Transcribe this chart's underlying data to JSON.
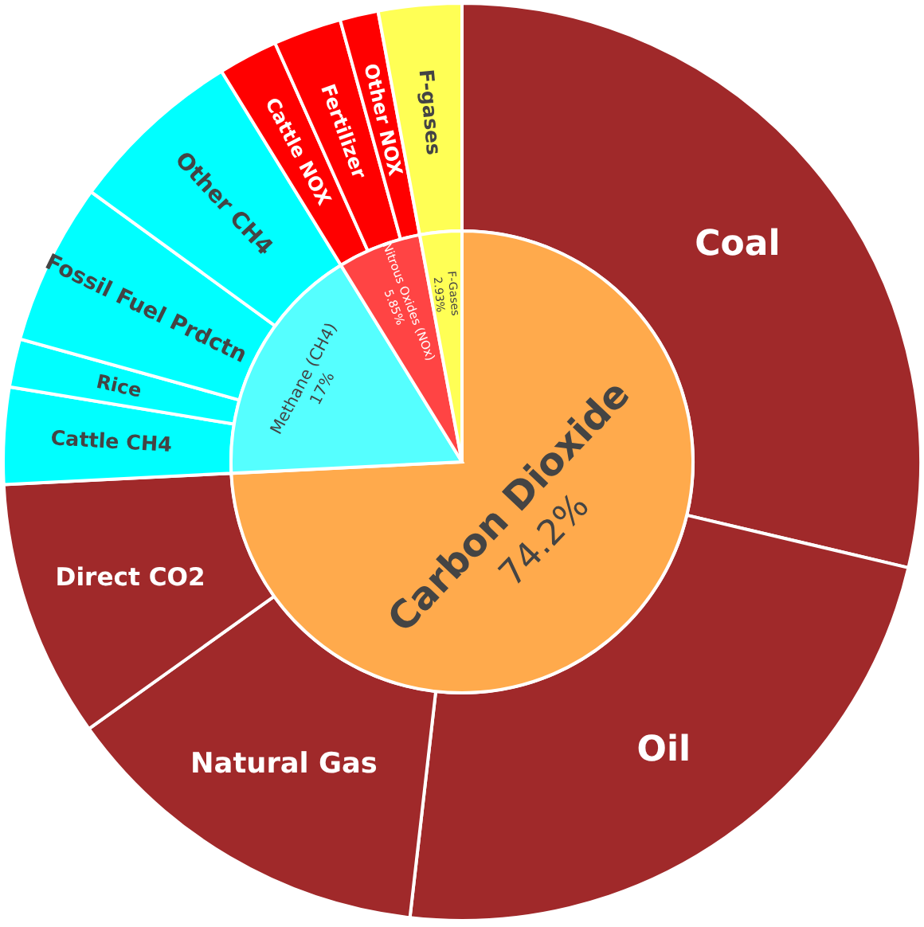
{
  "chart_data": [
    {
      "type": "pie",
      "categories": [
        "Carbon Dioxide",
        "Methane (CH4)",
        "Nitrous Oxides (NOx)",
        "F-Gases"
      ],
      "values": [
        74.2,
        17,
        5.85,
        2.93
      ],
      "value_labels": [
        "74.2%",
        "17%",
        "5.85%",
        "2.93%"
      ],
      "colors": [
        "#ffaa4c",
        "#55ffff",
        "#ff4444",
        "#ffff55"
      ]
    },
    {
      "type": "donut",
      "categories": [
        "Coal",
        "Oil",
        "Natural Gas",
        "Direct CO2",
        "Cattle CH4",
        "Rice",
        "Fossil Fuel Prdctn",
        "Other CH4",
        "Cattle NOX",
        "Fertilizer",
        "Other NOX",
        "F-gases"
      ],
      "values": [
        28.7,
        23.1,
        13.3,
        9.1,
        3.4,
        1.7,
        5.7,
        6.2,
        2.1,
        2.4,
        1.35,
        2.93
      ],
      "colors": [
        "#a0292a",
        "#a0292a",
        "#a0292a",
        "#a0292a",
        "#00ffff",
        "#00ffff",
        "#00ffff",
        "#00ffff",
        "#ff0000",
        "#ff0000",
        "#ff0000",
        "#ffff55"
      ]
    }
  ]
}
